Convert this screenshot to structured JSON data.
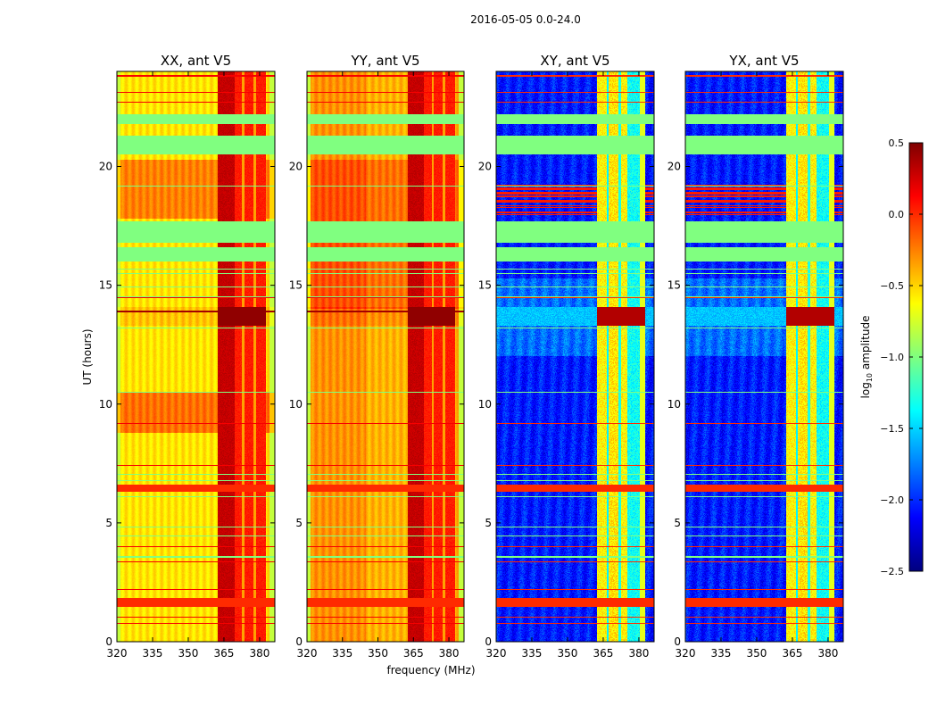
{
  "chart_data": {
    "type": "heatmap",
    "title": "2016-05-05 0.0-24.0",
    "xlabel": "frequency (MHz)",
    "ylabel": "UT (hours)",
    "xlim": [
      320,
      386.4
    ],
    "ylim": [
      0,
      24
    ],
    "xticks": [
      "320",
      "335",
      "350",
      "365",
      "380"
    ],
    "xtick_values": [
      320,
      335,
      350,
      365,
      380
    ],
    "yticks": [
      "0",
      "5",
      "10",
      "15",
      "20"
    ],
    "ytick_values": [
      0,
      5,
      10,
      15,
      20
    ],
    "panels": [
      {
        "title": "XX, ant V5",
        "base_log10_amplitude": -0.55
      },
      {
        "title": "YY, ant V5",
        "base_log10_amplitude": -0.35
      },
      {
        "title": "XY, ant V5",
        "base_log10_amplitude": -2.0
      },
      {
        "title": "YX, ant V5",
        "base_log10_amplitude": -2.0
      }
    ],
    "rfi_band_mhz": [
      362.5,
      382.5
    ],
    "flagged_intervals_hours": [
      [
        16.0,
        16.6
      ],
      [
        16.8,
        17.7
      ],
      [
        20.5,
        21.3
      ],
      [
        21.8,
        22.2
      ]
    ],
    "high_amplitude_intervals_hours": [
      [
        1.45,
        1.85
      ],
      [
        6.3,
        6.6
      ],
      [
        13.3,
        14.1
      ]
    ],
    "colorbar": {
      "label_main": "log",
      "label_sub": "10",
      "label_rest": " amplitude",
      "range": [
        -2.5,
        0.5
      ],
      "colormap": "jet",
      "ticks": [
        "0.5",
        "0.0",
        "−0.5",
        "−1.0",
        "−1.5",
        "−2.0",
        "−2.5"
      ],
      "tick_values": [
        0.5,
        0.0,
        -0.5,
        -1.0,
        -1.5,
        -2.0,
        -2.5
      ]
    }
  }
}
